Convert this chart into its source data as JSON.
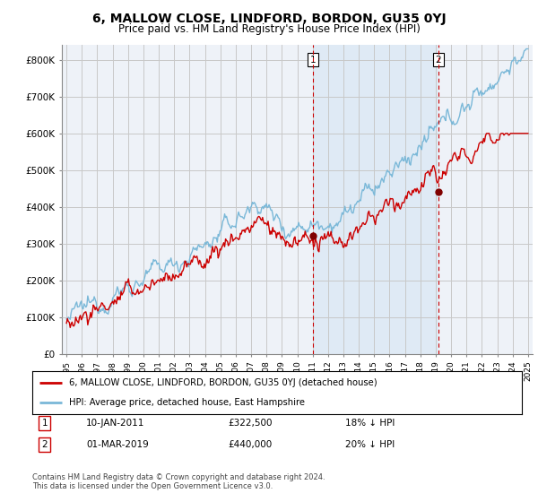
{
  "title": "6, MALLOW CLOSE, LINDFORD, BORDON, GU35 0YJ",
  "subtitle": "Price paid vs. HM Land Registry's House Price Index (HPI)",
  "title_fontsize": 10,
  "subtitle_fontsize": 8.5,
  "ylabel_ticks": [
    "£0",
    "£100K",
    "£200K",
    "£300K",
    "£400K",
    "£500K",
    "£600K",
    "£700K",
    "£800K"
  ],
  "ytick_values": [
    0,
    100000,
    200000,
    300000,
    400000,
    500000,
    600000,
    700000,
    800000
  ],
  "ylim": [
    0,
    840000
  ],
  "xlim_start": 1994.7,
  "xlim_end": 2025.3,
  "sale1_date": 2011.04,
  "sale1_label": "1",
  "sale1_price": 322500,
  "sale1_text": "10-JAN-2011",
  "sale1_pct": "18% ↓ HPI",
  "sale2_date": 2019.17,
  "sale2_label": "2",
  "sale2_price": 440000,
  "sale2_text": "01-MAR-2019",
  "sale2_pct": "20% ↓ HPI",
  "legend_line1": "6, MALLOW CLOSE, LINDFORD, BORDON, GU35 0YJ (detached house)",
  "legend_line2": "HPI: Average price, detached house, East Hampshire",
  "footer1": "Contains HM Land Registry data © Crown copyright and database right 2024.",
  "footer2": "This data is licensed under the Open Government Licence v3.0.",
  "hpi_color": "#7ab8d8",
  "price_color": "#cc0000",
  "vline_color": "#cc0000",
  "grid_color": "#c8c8c8",
  "bg_color": "#ffffff",
  "plot_bg_color": "#eef2f8",
  "shade_color": "#dce8f5"
}
